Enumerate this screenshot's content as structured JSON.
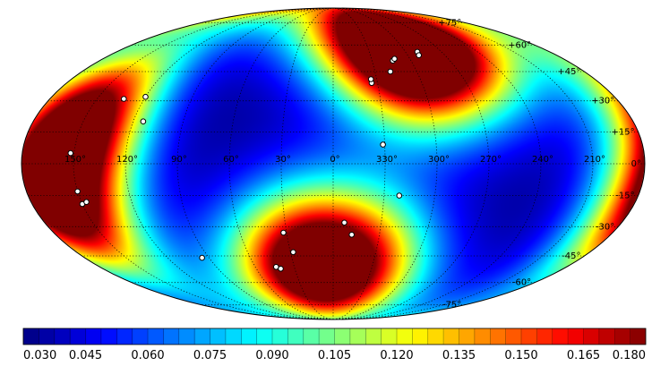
{
  "chart_data": {
    "type": "heatmap",
    "projection": "mollweide",
    "colormap": "jet",
    "color_range": [
      0.03,
      0.18
    ],
    "colorbar": {
      "ticks": [
        "0.030",
        "0.045",
        "0.060",
        "0.075",
        "0.090",
        "0.105",
        "0.120",
        "0.135",
        "0.150",
        "0.165",
        "0.180"
      ]
    },
    "longitude_labels": [
      {
        "lon": 150,
        "text": "150°"
      },
      {
        "lon": 120,
        "text": "120°"
      },
      {
        "lon": 90,
        "text": "90°"
      },
      {
        "lon": 60,
        "text": "60°"
      },
      {
        "lon": 30,
        "text": "30°"
      },
      {
        "lon": 0,
        "text": "0°"
      },
      {
        "lon": 330,
        "text": "330°"
      },
      {
        "lon": 300,
        "text": "300°"
      },
      {
        "lon": 270,
        "text": "270°"
      },
      {
        "lon": 240,
        "text": "240°"
      },
      {
        "lon": 210,
        "text": "210°"
      }
    ],
    "latitude_labels": [
      {
        "lat": 75,
        "text": "+75°"
      },
      {
        "lat": 60,
        "text": "+60°"
      },
      {
        "lat": 45,
        "text": "+45°"
      },
      {
        "lat": 30,
        "text": "+30°"
      },
      {
        "lat": 15,
        "text": "+15°"
      },
      {
        "lat": 0,
        "text": "0°"
      },
      {
        "lat": -15,
        "text": "-15°"
      },
      {
        "lat": -30,
        "text": "-30°"
      },
      {
        "lat": -45,
        "text": "-45°"
      },
      {
        "lat": -60,
        "text": "-60°"
      },
      {
        "lat": -75,
        "text": "-75°"
      }
    ],
    "field_sources": [
      {
        "lon": 150,
        "lat": 20,
        "weight": 1.0
      },
      {
        "lon": 165,
        "lat": -20,
        "weight": 1.0
      },
      {
        "lon": 310,
        "lat": 55,
        "weight": 1.0
      },
      {
        "lon": 280,
        "lat": 60,
        "weight": 0.7
      },
      {
        "lon": 20,
        "lat": -50,
        "weight": 1.0
      },
      {
        "lon": 340,
        "lat": -45,
        "weight": 0.55
      }
    ],
    "points": [
      {
        "lon": 120,
        "lat": 32
      },
      {
        "lon": 133,
        "lat": 31
      },
      {
        "lon": 114,
        "lat": 20
      },
      {
        "lon": 152,
        "lat": 5
      },
      {
        "lon": 150,
        "lat": -13
      },
      {
        "lon": 150,
        "lat": -19
      },
      {
        "lon": 147,
        "lat": -18
      },
      {
        "lon": 95,
        "lat": -46
      },
      {
        "lon": 32,
        "lat": -33
      },
      {
        "lon": 28,
        "lat": -43
      },
      {
        "lon": 41,
        "lat": -52
      },
      {
        "lon": 44,
        "lat": -51
      },
      {
        "lon": 353,
        "lat": -28
      },
      {
        "lon": 348,
        "lat": -34
      },
      {
        "lon": 331,
        "lat": 9
      },
      {
        "lon": 321,
        "lat": -15
      },
      {
        "lon": 334,
        "lat": 39
      },
      {
        "lon": 334,
        "lat": 41
      },
      {
        "lon": 319,
        "lat": 45
      },
      {
        "lon": 314,
        "lat": 51
      },
      {
        "lon": 312,
        "lat": 52
      },
      {
        "lon": 290,
        "lat": 56
      },
      {
        "lon": 291,
        "lat": 54
      }
    ]
  }
}
